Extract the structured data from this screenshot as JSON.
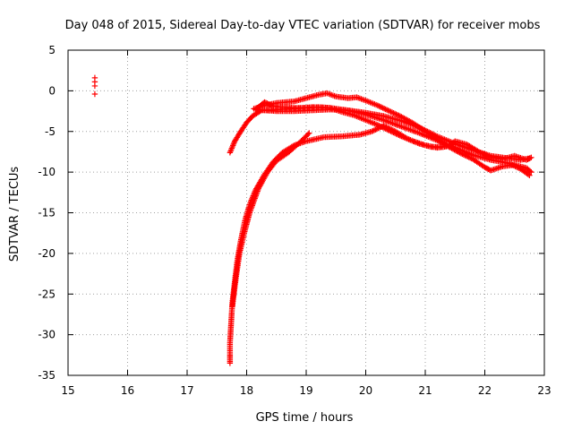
{
  "chart_data": {
    "type": "scatter",
    "title": "Day 048 of 2015, Sidereal Day-to-day VTEC variation (SDTVAR) for receiver mobs",
    "xlabel": "GPS time / hours",
    "ylabel": "SDTVAR / TECUs",
    "xlim": [
      15,
      23
    ],
    "ylim": [
      -35,
      5
    ],
    "xticks": [
      "15",
      "16",
      "17",
      "18",
      "19",
      "20",
      "21",
      "22",
      "23"
    ],
    "yticks": [
      "5",
      "0",
      "-5",
      "-10",
      "-15",
      "-20",
      "-25",
      "-30",
      "-35"
    ],
    "grid": true,
    "marker": "+",
    "color": "#ff0000",
    "series": [
      {
        "name": "early-cluster",
        "points": [
          [
            15.45,
            1.6
          ],
          [
            15.45,
            1.1
          ],
          [
            15.45,
            0.6
          ],
          [
            15.45,
            -0.4
          ]
        ]
      },
      {
        "name": "track-a",
        "points": [
          [
            17.72,
            -7.6
          ],
          [
            17.8,
            -6.2
          ],
          [
            17.9,
            -5.0
          ],
          [
            18.0,
            -3.9
          ],
          [
            18.1,
            -3.1
          ],
          [
            18.25,
            -2.4
          ],
          [
            18.5,
            -2.3
          ],
          [
            18.8,
            -2.2
          ],
          [
            19.1,
            -2.0
          ],
          [
            19.4,
            -2.1
          ],
          [
            19.7,
            -2.4
          ],
          [
            20.0,
            -2.7
          ],
          [
            20.3,
            -3.1
          ],
          [
            20.6,
            -3.7
          ],
          [
            20.9,
            -4.5
          ],
          [
            21.2,
            -5.6
          ],
          [
            21.5,
            -6.5
          ],
          [
            21.8,
            -7.3
          ],
          [
            22.1,
            -8.0
          ],
          [
            22.4,
            -8.3
          ],
          [
            22.6,
            -8.5
          ],
          [
            22.75,
            -8.3
          ]
        ]
      },
      {
        "name": "track-b",
        "points": [
          [
            18.15,
            -2.3
          ],
          [
            18.3,
            -2.4
          ],
          [
            18.5,
            -2.5
          ],
          [
            18.8,
            -2.5
          ],
          [
            19.1,
            -2.4
          ],
          [
            19.4,
            -2.3
          ],
          [
            19.7,
            -2.4
          ],
          [
            20.0,
            -2.9
          ],
          [
            20.3,
            -3.6
          ],
          [
            20.6,
            -4.4
          ],
          [
            20.9,
            -5.2
          ],
          [
            21.2,
            -6.1
          ],
          [
            21.5,
            -7.0
          ],
          [
            21.8,
            -7.9
          ],
          [
            22.1,
            -8.5
          ],
          [
            22.4,
            -8.9
          ],
          [
            22.6,
            -9.6
          ],
          [
            22.75,
            -10.4
          ]
        ]
      },
      {
        "name": "track-c",
        "points": [
          [
            18.12,
            -2.2
          ],
          [
            18.3,
            -1.8
          ],
          [
            18.5,
            -1.5
          ],
          [
            18.8,
            -1.3
          ],
          [
            19.0,
            -0.9
          ],
          [
            19.2,
            -0.5
          ],
          [
            19.35,
            -0.3
          ],
          [
            19.5,
            -0.7
          ],
          [
            19.7,
            -0.9
          ],
          [
            19.85,
            -0.8
          ],
          [
            20.0,
            -1.2
          ],
          [
            20.2,
            -1.8
          ],
          [
            20.4,
            -2.5
          ],
          [
            20.6,
            -3.2
          ],
          [
            20.8,
            -4.0
          ],
          [
            21.0,
            -5.0
          ],
          [
            21.2,
            -6.0
          ],
          [
            21.4,
            -6.9
          ],
          [
            21.6,
            -7.7
          ],
          [
            21.8,
            -8.4
          ],
          [
            22.0,
            -9.4
          ],
          [
            22.1,
            -9.8
          ],
          [
            22.3,
            -9.3
          ],
          [
            22.5,
            -9.1
          ],
          [
            22.7,
            -9.5
          ],
          [
            22.78,
            -10.0
          ]
        ]
      },
      {
        "name": "track-d",
        "points": [
          [
            18.15,
            -2.3
          ],
          [
            18.3,
            -1.4
          ],
          [
            18.45,
            -1.9
          ],
          [
            18.6,
            -2.0
          ],
          [
            18.8,
            -2.1
          ],
          [
            19.0,
            -2.1
          ],
          [
            19.2,
            -2.0
          ],
          [
            19.4,
            -2.1
          ],
          [
            19.6,
            -2.6
          ],
          [
            19.8,
            -3.0
          ],
          [
            20.0,
            -3.6
          ],
          [
            20.2,
            -4.2
          ],
          [
            20.4,
            -4.9
          ],
          [
            20.6,
            -5.6
          ],
          [
            20.8,
            -6.2
          ],
          [
            21.0,
            -6.7
          ],
          [
            21.2,
            -7.0
          ],
          [
            21.4,
            -6.8
          ],
          [
            21.5,
            -6.2
          ],
          [
            21.7,
            -6.6
          ],
          [
            21.9,
            -7.5
          ],
          [
            22.1,
            -8.2
          ],
          [
            22.3,
            -8.4
          ],
          [
            22.5,
            -8.0
          ],
          [
            22.7,
            -8.5
          ],
          [
            22.78,
            -8.2
          ]
        ]
      },
      {
        "name": "track-e",
        "points": [
          [
            17.72,
            -33.5
          ],
          [
            17.72,
            -31.0
          ],
          [
            17.74,
            -28.5
          ],
          [
            17.76,
            -26.0
          ],
          [
            17.8,
            -23.5
          ],
          [
            17.84,
            -21.0
          ],
          [
            17.9,
            -18.5
          ],
          [
            17.97,
            -16.0
          ],
          [
            18.05,
            -14.0
          ],
          [
            18.15,
            -12.2
          ],
          [
            18.3,
            -10.3
          ],
          [
            18.45,
            -8.7
          ],
          [
            18.6,
            -7.6
          ],
          [
            18.8,
            -6.7
          ],
          [
            19.0,
            -6.2
          ],
          [
            19.3,
            -5.7
          ],
          [
            19.6,
            -5.6
          ],
          [
            19.9,
            -5.4
          ],
          [
            20.1,
            -5.0
          ],
          [
            20.3,
            -4.3
          ],
          [
            20.5,
            -5.0
          ],
          [
            20.7,
            -5.9
          ],
          [
            20.9,
            -6.5
          ],
          [
            21.1,
            -6.9
          ],
          [
            21.3,
            -6.9
          ],
          [
            21.45,
            -6.6
          ]
        ]
      },
      {
        "name": "track-f",
        "points": [
          [
            17.76,
            -26.5
          ],
          [
            17.82,
            -23.0
          ],
          [
            17.88,
            -20.0
          ],
          [
            17.96,
            -17.5
          ],
          [
            18.05,
            -15.0
          ],
          [
            18.2,
            -12.0
          ],
          [
            18.35,
            -10.0
          ],
          [
            18.5,
            -8.6
          ],
          [
            18.7,
            -7.6
          ],
          [
            18.9,
            -6.3
          ],
          [
            19.05,
            -5.2
          ]
        ]
      }
    ]
  }
}
